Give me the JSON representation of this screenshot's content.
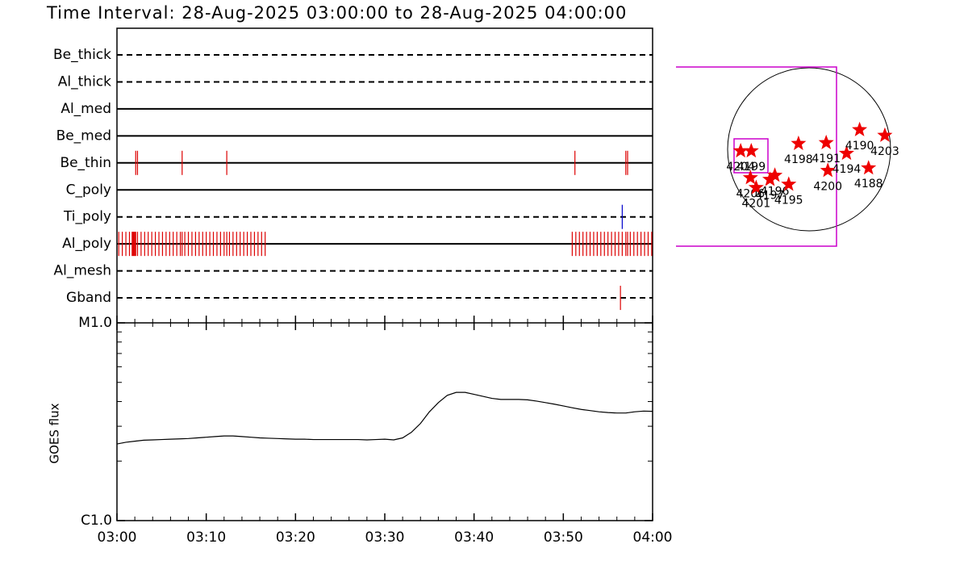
{
  "title": "Time Interval: 28-Aug-2025 03:00:00 to 28-Aug-2025 04:00:00",
  "chart_data": [
    {
      "type": "timeline",
      "xlim": [
        0,
        60
      ],
      "rows": [
        {
          "name": "Be_thick",
          "style": "dashed",
          "event_color": "#dd0000",
          "events": []
        },
        {
          "name": "Al_thick",
          "style": "dashed",
          "event_color": "#dd0000",
          "events": []
        },
        {
          "name": "Al_med",
          "style": "solid",
          "event_color": "#dd0000",
          "events": []
        },
        {
          "name": "Be_med",
          "style": "solid",
          "event_color": "#dd0000",
          "events": []
        },
        {
          "name": "Be_thin",
          "style": "solid",
          "event_color": "#dd0000",
          "events": [
            2.1,
            2.3,
            7.3,
            12.3,
            51.3,
            57.0,
            57.2
          ]
        },
        {
          "name": "C_poly",
          "style": "solid",
          "event_color": "#dd0000",
          "events": []
        },
        {
          "name": "Ti_poly",
          "style": "dashed",
          "event_color": "#0000cc",
          "events": [
            56.6
          ]
        },
        {
          "name": "Al_poly",
          "style": "solid",
          "event_color": "#dd0000",
          "events": [
            0.2,
            0.6,
            1.0,
            1.4,
            1.7,
            1.8,
            1.9,
            2.0,
            2.1,
            2.3,
            2.7,
            3.1,
            3.5,
            3.9,
            4.3,
            4.7,
            5.1,
            5.5,
            5.9,
            6.3,
            6.7,
            7.1,
            7.3,
            7.6,
            8.0,
            8.4,
            8.8,
            9.2,
            9.6,
            10.0,
            10.4,
            10.8,
            11.2,
            11.6,
            12.0,
            12.3,
            12.6,
            13.0,
            13.4,
            13.8,
            14.2,
            14.6,
            15.0,
            15.4,
            15.8,
            16.2,
            16.6,
            51.0,
            51.4,
            51.8,
            52.2,
            52.6,
            53.0,
            53.4,
            53.8,
            54.2,
            54.6,
            55.0,
            55.4,
            55.8,
            56.2,
            56.6,
            57.0,
            57.2,
            57.5,
            57.9,
            58.3,
            58.7,
            59.1,
            59.5,
            59.9
          ]
        },
        {
          "name": "Al_mesh",
          "style": "dashed",
          "event_color": "#dd0000",
          "events": []
        },
        {
          "name": "Gband",
          "style": "dashed",
          "event_color": "#dd0000",
          "events": [
            56.4
          ]
        }
      ]
    },
    {
      "type": "line",
      "ylabel": "GOES flux",
      "log_scale": true,
      "color": "#000000",
      "xlim": [
        0,
        60
      ],
      "xticks": [
        {
          "value": 0,
          "label": "03:00"
        },
        {
          "value": 10,
          "label": "03:10"
        },
        {
          "value": 20,
          "label": "03:20"
        },
        {
          "value": 30,
          "label": "03:30"
        },
        {
          "value": 40,
          "label": "03:40"
        },
        {
          "value": 50,
          "label": "03:50"
        },
        {
          "value": 60,
          "label": "04:00"
        }
      ],
      "minor_xticks": [
        2,
        4,
        6,
        8,
        12,
        14,
        16,
        18,
        22,
        24,
        26,
        28,
        32,
        34,
        36,
        38,
        42,
        44,
        46,
        48,
        52,
        54,
        56,
        58
      ],
      "ylim": [
        1e-06,
        1e-05
      ],
      "yticks": [
        {
          "value": 1e-06,
          "label": "C1.0"
        },
        {
          "value": 1e-05,
          "label": "M1.0"
        }
      ],
      "minor_yticks": [
        2e-06,
        3e-06,
        4e-06,
        5e-06,
        6e-06,
        7e-06,
        8e-06,
        9e-06
      ],
      "x": [
        0,
        1,
        2,
        3,
        4,
        5,
        6,
        7,
        8,
        9,
        10,
        11,
        12,
        13,
        14,
        15,
        16,
        17,
        18,
        19,
        20,
        21,
        22,
        23,
        24,
        25,
        26,
        27,
        28,
        29,
        30,
        31,
        32,
        33,
        34,
        35,
        36,
        37,
        38,
        39,
        40,
        41,
        42,
        43,
        44,
        45,
        46,
        47,
        48,
        49,
        50,
        51,
        52,
        53,
        54,
        55,
        56,
        57,
        58,
        59,
        60
      ],
      "values": [
        2.44e-06,
        2.49e-06,
        2.52e-06,
        2.55e-06,
        2.56e-06,
        2.57e-06,
        2.58e-06,
        2.59e-06,
        2.6e-06,
        2.62e-06,
        2.64e-06,
        2.66e-06,
        2.68e-06,
        2.68e-06,
        2.66e-06,
        2.64e-06,
        2.62e-06,
        2.61e-06,
        2.6e-06,
        2.59e-06,
        2.58e-06,
        2.58e-06,
        2.57e-06,
        2.57e-06,
        2.57e-06,
        2.57e-06,
        2.57e-06,
        2.57e-06,
        2.56e-06,
        2.57e-06,
        2.58e-06,
        2.56e-06,
        2.62e-06,
        2.8e-06,
        3.1e-06,
        3.55e-06,
        3.95e-06,
        4.3e-06,
        4.45e-06,
        4.45e-06,
        4.35e-06,
        4.25e-06,
        4.15e-06,
        4.1e-06,
        4.1e-06,
        4.1e-06,
        4.08e-06,
        4.02e-06,
        3.95e-06,
        3.88e-06,
        3.8e-06,
        3.72e-06,
        3.65e-06,
        3.6e-06,
        3.55e-06,
        3.52e-06,
        3.5e-06,
        3.5e-06,
        3.55e-06,
        3.58e-06,
        3.57e-06
      ]
    },
    {
      "type": "scatter",
      "color": "#ee0000",
      "labels": [
        "4204",
        "4199",
        "4206",
        "4201",
        "4197",
        "4196",
        "4195",
        "4198",
        "4191",
        "4194",
        "4190",
        "4203",
        "4200",
        "4188"
      ],
      "x": [
        -0.84,
        -0.71,
        -0.72,
        -0.65,
        -0.48,
        -0.42,
        -0.25,
        -0.13,
        0.21,
        0.46,
        0.62,
        0.93,
        0.23,
        0.73
      ],
      "y": [
        -0.02,
        -0.02,
        -0.35,
        -0.47,
        -0.37,
        -0.32,
        -0.43,
        0.07,
        0.08,
        -0.05,
        0.24,
        0.17,
        -0.26,
        -0.23
      ]
    }
  ]
}
